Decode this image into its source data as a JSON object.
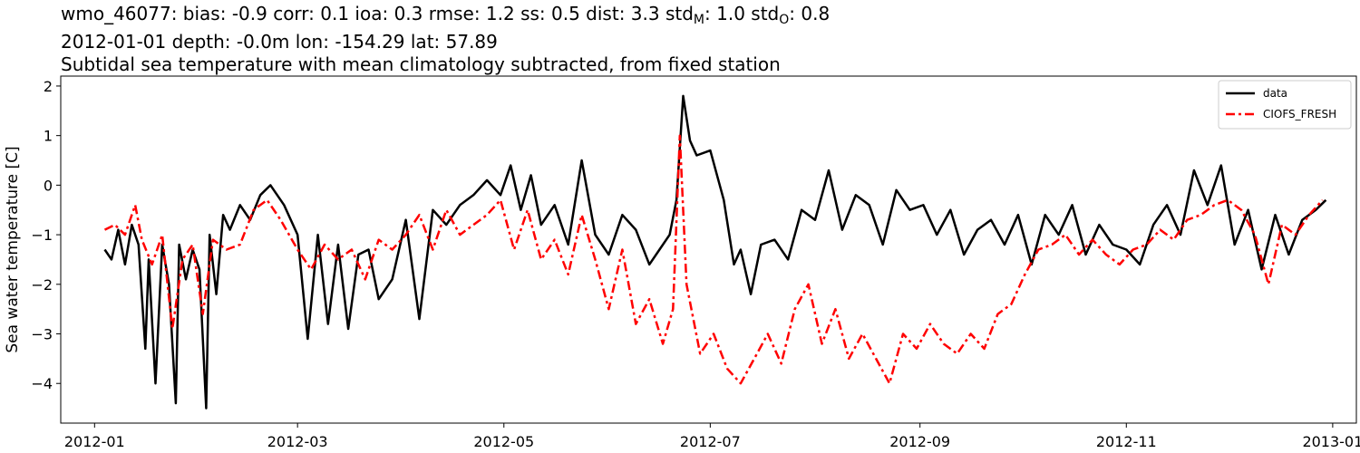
{
  "title": {
    "line1_parts": [
      {
        "t": "wmo_46077: bias: -0.9  corr: 0.1  ioa: 0.3  rmse: 1.2  ss: 0.5  dist: 3.3  std"
      },
      {
        "t": "M",
        "sub": true
      },
      {
        "t": ": 1.0  std"
      },
      {
        "t": "O",
        "sub": true
      },
      {
        "t": ": 0.8"
      }
    ],
    "line2": "2012-01-01 depth: -0.0m lon: -154.29 lat: 57.89",
    "line3": "Subtidal sea temperature with mean climatology subtracted, from fixed station"
  },
  "chart_data": {
    "type": "line",
    "ylabel": "Sea water temperature [C]",
    "xlabel": "",
    "ylim": [
      -4.8,
      2.2
    ],
    "xlim": [
      "2011-12-22",
      "2013-01-08"
    ],
    "x_ticks": [
      "2012-01",
      "2012-03",
      "2012-05",
      "2012-07",
      "2012-09",
      "2012-11",
      "2013-01"
    ],
    "x_tick_dates": [
      "2012-01-01",
      "2012-03-01",
      "2012-05-01",
      "2012-07-01",
      "2012-09-01",
      "2012-11-01",
      "2013-01-01"
    ],
    "y_ticks": [
      -4,
      -3,
      -2,
      -1,
      0,
      1,
      2
    ],
    "y_tick_labels": [
      "−4",
      "−3",
      "−2",
      "−1",
      "0",
      "1",
      "2"
    ],
    "legend": {
      "position": "upper-right"
    },
    "series": [
      {
        "name": "data",
        "color": "#000000",
        "style": "solid",
        "x": [
          "2012-01-04",
          "2012-01-06",
          "2012-01-08",
          "2012-01-10",
          "2012-01-12",
          "2012-01-14",
          "2012-01-16",
          "2012-01-17",
          "2012-01-19",
          "2012-01-21",
          "2012-01-23",
          "2012-01-25",
          "2012-01-26",
          "2012-01-28",
          "2012-01-30",
          "2012-02-01",
          "2012-02-03",
          "2012-02-04",
          "2012-02-06",
          "2012-02-08",
          "2012-02-10",
          "2012-02-13",
          "2012-02-16",
          "2012-02-19",
          "2012-02-22",
          "2012-02-26",
          "2012-03-01",
          "2012-03-04",
          "2012-03-07",
          "2012-03-10",
          "2012-03-13",
          "2012-03-16",
          "2012-03-19",
          "2012-03-22",
          "2012-03-25",
          "2012-03-29",
          "2012-04-02",
          "2012-04-06",
          "2012-04-10",
          "2012-04-14",
          "2012-04-18",
          "2012-04-22",
          "2012-04-26",
          "2012-04-30",
          "2012-05-03",
          "2012-05-06",
          "2012-05-09",
          "2012-05-12",
          "2012-05-16",
          "2012-05-20",
          "2012-05-24",
          "2012-05-28",
          "2012-06-01",
          "2012-06-05",
          "2012-06-09",
          "2012-06-13",
          "2012-06-16",
          "2012-06-19",
          "2012-06-21",
          "2012-06-23",
          "2012-06-25",
          "2012-06-27",
          "2012-07-01",
          "2012-07-05",
          "2012-07-08",
          "2012-07-10",
          "2012-07-13",
          "2012-07-16",
          "2012-07-20",
          "2012-07-24",
          "2012-07-28",
          "2012-08-01",
          "2012-08-05",
          "2012-08-09",
          "2012-08-13",
          "2012-08-17",
          "2012-08-21",
          "2012-08-25",
          "2012-08-29",
          "2012-09-02",
          "2012-09-06",
          "2012-09-10",
          "2012-09-14",
          "2012-09-18",
          "2012-09-22",
          "2012-09-26",
          "2012-09-30",
          "2012-10-04",
          "2012-10-08",
          "2012-10-12",
          "2012-10-16",
          "2012-10-20",
          "2012-10-24",
          "2012-10-28",
          "2012-11-01",
          "2012-11-05",
          "2012-11-09",
          "2012-11-13",
          "2012-11-17",
          "2012-11-21",
          "2012-11-25",
          "2012-11-29",
          "2012-12-03",
          "2012-12-07",
          "2012-12-11",
          "2012-12-15",
          "2012-12-19",
          "2012-12-23",
          "2012-12-27",
          "2012-12-30"
        ],
        "y": [
          -1.3,
          -1.5,
          -0.9,
          -1.6,
          -0.8,
          -1.2,
          -3.3,
          -1.5,
          -4.0,
          -1.2,
          -2.0,
          -4.4,
          -1.2,
          -1.9,
          -1.3,
          -1.7,
          -4.5,
          -1.0,
          -2.2,
          -0.6,
          -0.9,
          -0.4,
          -0.7,
          -0.2,
          0.0,
          -0.4,
          -1.0,
          -3.1,
          -1.0,
          -2.8,
          -1.2,
          -2.9,
          -1.4,
          -1.3,
          -2.3,
          -1.9,
          -0.7,
          -2.7,
          -0.5,
          -0.8,
          -0.4,
          -0.2,
          0.1,
          -0.2,
          0.4,
          -0.5,
          0.2,
          -0.8,
          -0.4,
          -1.2,
          0.5,
          -1.0,
          -1.4,
          -0.6,
          -0.9,
          -1.6,
          -1.3,
          -1.0,
          -0.3,
          1.8,
          0.9,
          0.6,
          0.7,
          -0.3,
          -1.6,
          -1.3,
          -2.2,
          -1.2,
          -1.1,
          -1.5,
          -0.5,
          -0.7,
          0.3,
          -0.9,
          -0.2,
          -0.4,
          -1.2,
          -0.1,
          -0.5,
          -0.4,
          -1.0,
          -0.5,
          -1.4,
          -0.9,
          -0.7,
          -1.2,
          -0.6,
          -1.6,
          -0.6,
          -1.0,
          -0.4,
          -1.4,
          -0.8,
          -1.2,
          -1.3,
          -1.6,
          -0.8,
          -0.4,
          -1.0,
          0.3,
          -0.4,
          0.4,
          -1.2,
          -0.5,
          -1.7,
          -0.6,
          -1.4,
          -0.7,
          -0.5,
          -0.3
        ]
      },
      {
        "name": "CIOFS_FRESH",
        "color": "#ff0000",
        "style": "dashdot",
        "x": [
          "2012-01-04",
          "2012-01-07",
          "2012-01-10",
          "2012-01-13",
          "2012-01-15",
          "2012-01-18",
          "2012-01-21",
          "2012-01-24",
          "2012-01-27",
          "2012-01-30",
          "2012-02-02",
          "2012-02-05",
          "2012-02-09",
          "2012-02-13",
          "2012-02-17",
          "2012-02-21",
          "2012-02-25",
          "2012-03-01",
          "2012-03-05",
          "2012-03-09",
          "2012-03-13",
          "2012-03-17",
          "2012-03-21",
          "2012-03-25",
          "2012-03-29",
          "2012-04-02",
          "2012-04-06",
          "2012-04-10",
          "2012-04-14",
          "2012-04-18",
          "2012-04-22",
          "2012-04-26",
          "2012-04-30",
          "2012-05-04",
          "2012-05-08",
          "2012-05-12",
          "2012-05-16",
          "2012-05-20",
          "2012-05-24",
          "2012-05-28",
          "2012-06-01",
          "2012-06-05",
          "2012-06-09",
          "2012-06-13",
          "2012-06-17",
          "2012-06-20",
          "2012-06-22",
          "2012-06-24",
          "2012-06-28",
          "2012-07-02",
          "2012-07-06",
          "2012-07-10",
          "2012-07-14",
          "2012-07-18",
          "2012-07-22",
          "2012-07-26",
          "2012-07-30",
          "2012-08-03",
          "2012-08-07",
          "2012-08-11",
          "2012-08-15",
          "2012-08-19",
          "2012-08-23",
          "2012-08-27",
          "2012-08-31",
          "2012-09-04",
          "2012-09-08",
          "2012-09-12",
          "2012-09-16",
          "2012-09-20",
          "2012-09-24",
          "2012-09-28",
          "2012-10-02",
          "2012-10-06",
          "2012-10-10",
          "2012-10-14",
          "2012-10-18",
          "2012-10-22",
          "2012-10-26",
          "2012-10-30",
          "2012-11-03",
          "2012-11-07",
          "2012-11-11",
          "2012-11-15",
          "2012-11-19",
          "2012-11-23",
          "2012-11-27",
          "2012-12-01",
          "2012-12-05",
          "2012-12-09",
          "2012-12-13",
          "2012-12-17",
          "2012-12-21",
          "2012-12-25",
          "2012-12-29"
        ],
        "y": [
          -0.9,
          -0.8,
          -1.0,
          -0.4,
          -1.1,
          -1.6,
          -1.0,
          -2.9,
          -1.5,
          -1.2,
          -2.6,
          -1.1,
          -1.3,
          -1.2,
          -0.5,
          -0.3,
          -0.7,
          -1.3,
          -1.7,
          -1.2,
          -1.5,
          -1.3,
          -1.9,
          -1.1,
          -1.3,
          -1.0,
          -0.6,
          -1.3,
          -0.5,
          -1.0,
          -0.8,
          -0.6,
          -0.3,
          -1.3,
          -0.5,
          -1.5,
          -1.1,
          -1.8,
          -0.6,
          -1.5,
          -2.5,
          -1.3,
          -2.8,
          -2.3,
          -3.2,
          -2.5,
          1.0,
          -2.0,
          -3.4,
          -3.0,
          -3.7,
          -4.0,
          -3.5,
          -3.0,
          -3.6,
          -2.5,
          -2.0,
          -3.2,
          -2.5,
          -3.5,
          -3.0,
          -3.5,
          -4.0,
          -3.0,
          -3.3,
          -2.8,
          -3.2,
          -3.4,
          -3.0,
          -3.3,
          -2.6,
          -2.4,
          -1.8,
          -1.3,
          -1.2,
          -1.0,
          -1.4,
          -1.1,
          -1.4,
          -1.6,
          -1.3,
          -1.2,
          -0.9,
          -1.1,
          -0.7,
          -0.6,
          -0.4,
          -0.3,
          -0.5,
          -1.0,
          -2.0,
          -0.8,
          -1.0,
          -0.6,
          -0.3
        ]
      }
    ]
  }
}
